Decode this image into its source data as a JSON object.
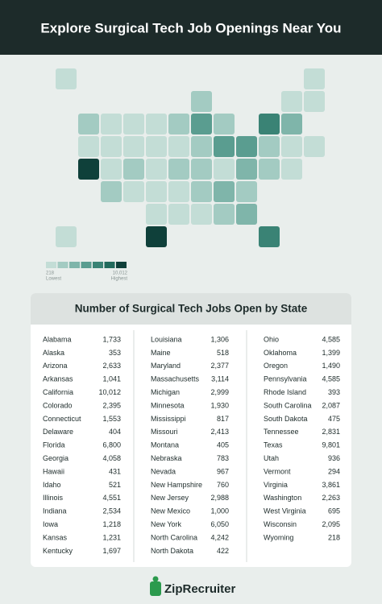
{
  "header": {
    "title": "Explore Surgical Tech Job Openings Near You"
  },
  "legend": {
    "colors": [
      "#c3ddd6",
      "#a3cbc2",
      "#7fb5aa",
      "#5a9d90",
      "#3a8375",
      "#216a5c",
      "#0f403a"
    ],
    "low_value": 218,
    "low_label": "Lowest",
    "high_value": {
      "value": 10012,
      "label": "10,012"
    },
    "high_label": "Highest"
  },
  "table": {
    "title": "Number of Surgical Tech Jobs Open by State",
    "columns": [
      [
        [
          "Alabama",
          "1,733"
        ],
        [
          "Alaska",
          "353"
        ],
        [
          "Arizona",
          "2,633"
        ],
        [
          "Arkansas",
          "1,041"
        ],
        [
          "California",
          "10,012"
        ],
        [
          "Colorado",
          "2,395"
        ],
        [
          "Connecticut",
          "1,553"
        ],
        [
          "Delaware",
          "404"
        ],
        [
          "Florida",
          "6,800"
        ],
        [
          "Georgia",
          "4,058"
        ],
        [
          "Hawaii",
          "431"
        ],
        [
          "Idaho",
          "521"
        ],
        [
          "Illinois",
          "4,551"
        ],
        [
          "Indiana",
          "2,534"
        ],
        [
          "Iowa",
          "1,218"
        ],
        [
          "Kansas",
          "1,231"
        ],
        [
          "Kentucky",
          "1,697"
        ]
      ],
      [
        [
          "Louisiana",
          "1,306"
        ],
        [
          "Maine",
          "518"
        ],
        [
          "Maryland",
          "2,377"
        ],
        [
          "Massachusetts",
          "3,114"
        ],
        [
          "Michigan",
          "2,999"
        ],
        [
          "Minnesota",
          "1,930"
        ],
        [
          "Mississippi",
          "817"
        ],
        [
          "Missouri",
          "2,413"
        ],
        [
          "Montana",
          "405"
        ],
        [
          "Nebraska",
          "783"
        ],
        [
          "Nevada",
          "967"
        ],
        [
          "New Hampshire",
          "760"
        ],
        [
          "New Jersey",
          "2,988"
        ],
        [
          "New Mexico",
          "1,000"
        ],
        [
          "New York",
          "6,050"
        ],
        [
          "North Carolina",
          "4,242"
        ],
        [
          "North Dakota",
          "422"
        ]
      ],
      [
        [
          "Ohio",
          "4,585"
        ],
        [
          "Oklahoma",
          "1,399"
        ],
        [
          "Oregon",
          "1,490"
        ],
        [
          "Pennsylvania",
          "4,585"
        ],
        [
          "Rhode Island",
          "393"
        ],
        [
          "South Carolina",
          "2,087"
        ],
        [
          "South Dakota",
          "475"
        ],
        [
          "Tennessee",
          "2,831"
        ],
        [
          "Texas",
          "9,801"
        ],
        [
          "Utah",
          "936"
        ],
        [
          "Vermont",
          "294"
        ],
        [
          "Virginia",
          "3,861"
        ],
        [
          "Washington",
          "2,263"
        ],
        [
          "West Virginia",
          "695"
        ],
        [
          "Wisconsin",
          "2,095"
        ],
        [
          "Wyoming",
          "218"
        ]
      ]
    ]
  },
  "footer": {
    "brand": "ZipRecruiter"
  }
}
